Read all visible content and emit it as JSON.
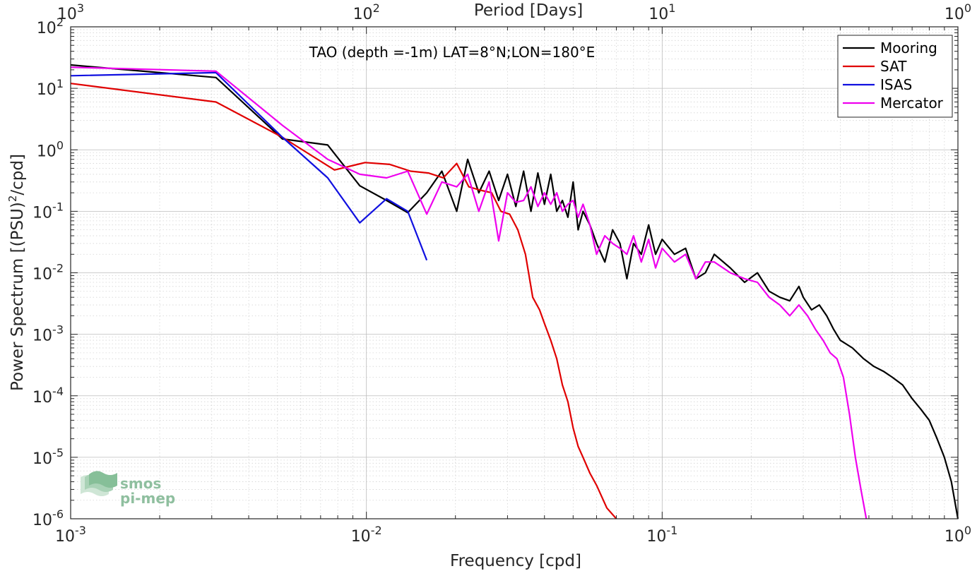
{
  "chart_data": {
    "type": "line",
    "title": "TAO (depth =-1m) LAT=8°N;LON=180°E",
    "xlabel": "Frequency [cpd]",
    "ylabel": "Power Spectrum [(PSU)²/cpd]",
    "top_xlabel": "Period [Days]",
    "x_scale": "log",
    "y_scale": "log",
    "xlim": [
      0.001,
      1
    ],
    "ylim": [
      1e-06,
      100
    ],
    "grid": true,
    "legend_position": "top-right",
    "x_ticks": [
      {
        "value": 0.001,
        "base": "10",
        "exp": "-3"
      },
      {
        "value": 0.01,
        "base": "10",
        "exp": "-2"
      },
      {
        "value": 0.1,
        "base": "10",
        "exp": "-1"
      },
      {
        "value": 1,
        "base": "10",
        "exp": "0"
      }
    ],
    "top_ticks": [
      {
        "value": 0.001,
        "base": "10",
        "exp": "3"
      },
      {
        "value": 0.01,
        "base": "10",
        "exp": "2"
      },
      {
        "value": 0.1,
        "base": "10",
        "exp": "1"
      },
      {
        "value": 1,
        "base": "10",
        "exp": "0"
      }
    ],
    "y_ticks": [
      {
        "value": 100,
        "base": "10",
        "exp": "2"
      },
      {
        "value": 10,
        "base": "10",
        "exp": "1"
      },
      {
        "value": 1,
        "base": "10",
        "exp": "0"
      },
      {
        "value": 0.1,
        "base": "10",
        "exp": "-1"
      },
      {
        "value": 0.01,
        "base": "10",
        "exp": "-2"
      },
      {
        "value": 0.001,
        "base": "10",
        "exp": "-3"
      },
      {
        "value": 0.0001,
        "base": "10",
        "exp": "-4"
      },
      {
        "value": 1e-05,
        "base": "10",
        "exp": "-5"
      },
      {
        "value": 1e-06,
        "base": "10",
        "exp": "-6"
      }
    ],
    "series": [
      {
        "name": "Mooring",
        "color": "#000000",
        "x": [
          0.001,
          0.0031,
          0.0052,
          0.0074,
          0.0095,
          0.0117,
          0.0138,
          0.016,
          0.018,
          0.0202,
          0.022,
          0.024,
          0.026,
          0.028,
          0.03,
          0.032,
          0.034,
          0.036,
          0.038,
          0.04,
          0.042,
          0.044,
          0.046,
          0.048,
          0.05,
          0.052,
          0.054,
          0.057,
          0.06,
          0.064,
          0.068,
          0.072,
          0.076,
          0.08,
          0.085,
          0.09,
          0.095,
          0.1,
          0.11,
          0.12,
          0.13,
          0.14,
          0.15,
          0.17,
          0.19,
          0.21,
          0.23,
          0.25,
          0.27,
          0.29,
          0.3,
          0.32,
          0.34,
          0.36,
          0.38,
          0.4,
          0.44,
          0.48,
          0.52,
          0.56,
          0.6,
          0.65,
          0.7,
          0.75,
          0.8,
          0.85,
          0.9,
          0.95,
          1.0
        ],
        "y": [
          24,
          15,
          1.5,
          1.2,
          0.26,
          0.15,
          0.095,
          0.2,
          0.45,
          0.1,
          0.7,
          0.2,
          0.45,
          0.15,
          0.4,
          0.12,
          0.45,
          0.1,
          0.42,
          0.13,
          0.4,
          0.1,
          0.15,
          0.08,
          0.3,
          0.05,
          0.1,
          0.06,
          0.03,
          0.015,
          0.05,
          0.03,
          0.008,
          0.03,
          0.02,
          0.06,
          0.02,
          0.035,
          0.02,
          0.025,
          0.008,
          0.01,
          0.02,
          0.012,
          0.007,
          0.01,
          0.005,
          0.004,
          0.0035,
          0.006,
          0.004,
          0.0025,
          0.003,
          0.002,
          0.0012,
          0.0008,
          0.0006,
          0.0004,
          0.0003,
          0.00025,
          0.0002,
          0.00015,
          9e-05,
          6e-05,
          4e-05,
          2e-05,
          1e-05,
          4e-06,
          1e-06
        ]
      },
      {
        "name": "SAT",
        "color": "#e00000",
        "x": [
          0.001,
          0.0031,
          0.0052,
          0.0078,
          0.0099,
          0.012,
          0.0141,
          0.0162,
          0.0182,
          0.0202,
          0.0222,
          0.0243,
          0.0265,
          0.0285,
          0.0305,
          0.0325,
          0.0345,
          0.0365,
          0.0385,
          0.04,
          0.042,
          0.044,
          0.046,
          0.048,
          0.05,
          0.052,
          0.054,
          0.057,
          0.06,
          0.065,
          0.07
        ],
        "y": [
          12,
          6,
          1.6,
          0.47,
          0.62,
          0.58,
          0.45,
          0.42,
          0.35,
          0.6,
          0.25,
          0.22,
          0.2,
          0.1,
          0.09,
          0.05,
          0.02,
          0.004,
          0.0025,
          0.0015,
          0.0008,
          0.0004,
          0.00015,
          8e-05,
          3e-05,
          1.5e-05,
          1e-05,
          5.5e-06,
          3.5e-06,
          1.5e-06,
          1e-06
        ]
      },
      {
        "name": "ISAS",
        "color": "#1010e0",
        "x": [
          0.001,
          0.0031,
          0.0052,
          0.0074,
          0.0095,
          0.0117,
          0.0138,
          0.016
        ],
        "y": [
          16,
          18,
          1.6,
          0.35,
          0.065,
          0.16,
          0.1,
          0.016
        ]
      },
      {
        "name": "Mercator",
        "color": "#ee00ee",
        "x": [
          0.001,
          0.0031,
          0.0052,
          0.0074,
          0.0095,
          0.0117,
          0.0138,
          0.016,
          0.018,
          0.0202,
          0.022,
          0.024,
          0.026,
          0.028,
          0.03,
          0.032,
          0.034,
          0.036,
          0.038,
          0.04,
          0.042,
          0.044,
          0.046,
          0.048,
          0.05,
          0.052,
          0.054,
          0.057,
          0.06,
          0.064,
          0.068,
          0.072,
          0.076,
          0.08,
          0.085,
          0.09,
          0.095,
          0.1,
          0.11,
          0.12,
          0.13,
          0.14,
          0.15,
          0.17,
          0.19,
          0.21,
          0.23,
          0.25,
          0.27,
          0.29,
          0.31,
          0.33,
          0.35,
          0.37,
          0.39,
          0.41,
          0.43,
          0.45,
          0.47,
          0.49
        ],
        "y": [
          22,
          19,
          2.5,
          0.7,
          0.4,
          0.35,
          0.45,
          0.09,
          0.3,
          0.25,
          0.4,
          0.1,
          0.3,
          0.033,
          0.2,
          0.14,
          0.15,
          0.25,
          0.12,
          0.2,
          0.13,
          0.2,
          0.1,
          0.13,
          0.15,
          0.08,
          0.13,
          0.06,
          0.02,
          0.04,
          0.03,
          0.025,
          0.02,
          0.04,
          0.015,
          0.035,
          0.012,
          0.025,
          0.015,
          0.02,
          0.008,
          0.015,
          0.015,
          0.01,
          0.008,
          0.007,
          0.004,
          0.003,
          0.002,
          0.003,
          0.002,
          0.0012,
          0.0008,
          0.0005,
          0.0004,
          0.0002,
          5e-05,
          1e-05,
          3e-06,
          1e-06
        ]
      }
    ]
  },
  "logo": {
    "line1": "smos",
    "line2": "pi-mep"
  }
}
